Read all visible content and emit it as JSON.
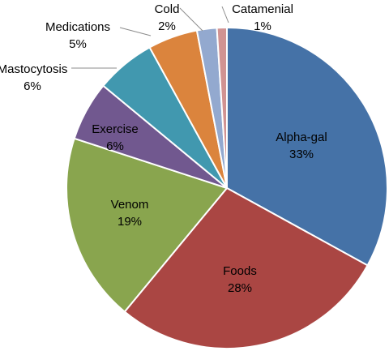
{
  "chart_data": {
    "type": "pie",
    "title": "",
    "slices": [
      {
        "label": "Alpha-gal",
        "value": 33,
        "value_label": "33%",
        "color": "#4572A7",
        "label_position": "inside"
      },
      {
        "label": "Foods",
        "value": 28,
        "value_label": "28%",
        "color": "#AA4643",
        "label_position": "inside"
      },
      {
        "label": "Venom",
        "value": 19,
        "value_label": "19%",
        "color": "#89A54E",
        "label_position": "inside"
      },
      {
        "label": "Exercise",
        "value": 6,
        "value_label": "6%",
        "color": "#71588F",
        "label_position": "inside"
      },
      {
        "label": "Mastocytosis",
        "value": 6,
        "value_label": "6%",
        "color": "#4198AF",
        "label_position": "outside"
      },
      {
        "label": "Medications",
        "value": 5,
        "value_label": "5%",
        "color": "#DB843D",
        "label_position": "outside"
      },
      {
        "label": "Cold",
        "value": 2,
        "value_label": "2%",
        "color": "#93A9CF",
        "label_position": "outside"
      },
      {
        "label": "Catamenial",
        "value": 1,
        "value_label": "1%",
        "color": "#D19392",
        "label_position": "outside"
      }
    ],
    "start_angle_deg": 0,
    "direction": "clockwise",
    "legend": "none",
    "data_labels": "category and percentage"
  }
}
